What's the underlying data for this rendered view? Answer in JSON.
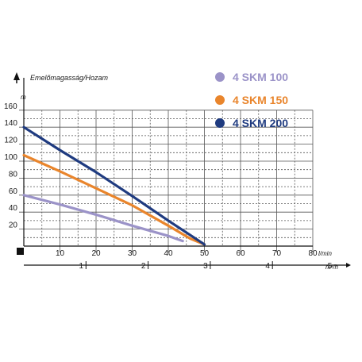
{
  "chart_data": {
    "type": "line",
    "ylabel": "Emelőmagasság/Hozam",
    "yunit": "m",
    "xunit": "l/min",
    "x2unit": "m³/h",
    "xlim": [
      0,
      80
    ],
    "ylim": [
      0,
      160
    ],
    "x_ticks": [
      "10",
      "20",
      "30",
      "40",
      "50",
      "60",
      "70",
      "80"
    ],
    "y_ticks": [
      "20",
      "40",
      "60",
      "80",
      "100",
      "120",
      "140",
      "160"
    ],
    "x2_ticks": [
      "1",
      "2",
      "3",
      "4",
      "5"
    ],
    "x2_values": [
      1,
      2,
      3,
      4,
      5
    ],
    "grid": true,
    "legend_position": "top-right",
    "series": [
      {
        "name": "4 SKM 100",
        "color": "#9b93c8",
        "points": [
          [
            0,
            60
          ],
          [
            10,
            49
          ],
          [
            20,
            37
          ],
          [
            30,
            24
          ],
          [
            40,
            12
          ],
          [
            44,
            6
          ]
        ]
      },
      {
        "name": "4 SKM 150",
        "color": "#e9852c",
        "points": [
          [
            0,
            107
          ],
          [
            10,
            88
          ],
          [
            20,
            68
          ],
          [
            30,
            48
          ],
          [
            40,
            24
          ],
          [
            46,
            9
          ],
          [
            50,
            2
          ]
        ]
      },
      {
        "name": "4 SKM 200",
        "color": "#1f3b80",
        "points": [
          [
            0,
            140
          ],
          [
            10,
            113
          ],
          [
            20,
            87
          ],
          [
            30,
            59
          ],
          [
            40,
            30
          ],
          [
            45,
            16
          ],
          [
            50,
            2
          ]
        ]
      }
    ]
  }
}
